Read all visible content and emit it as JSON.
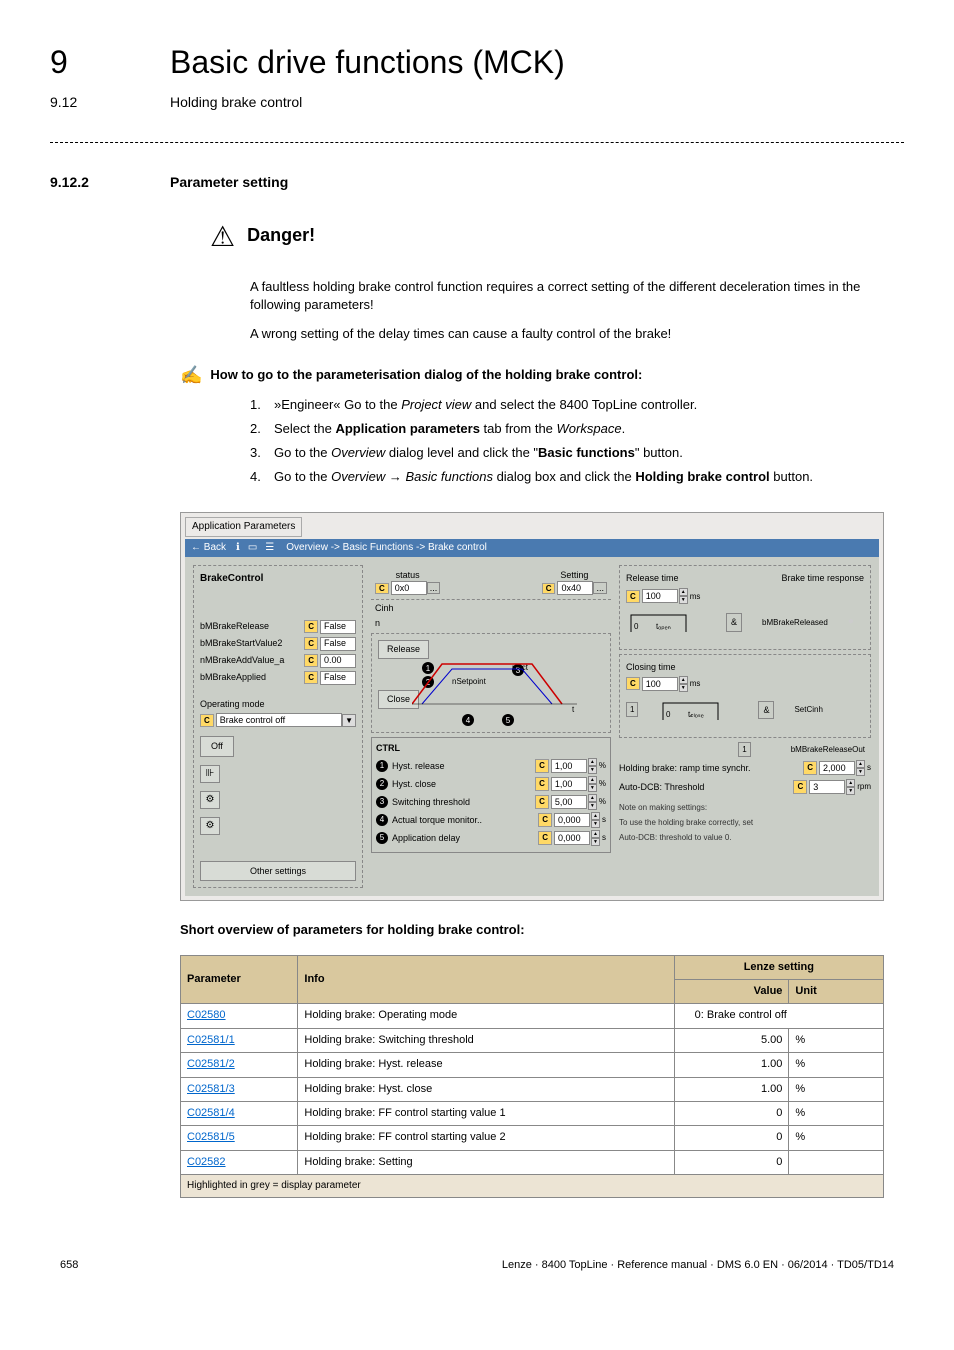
{
  "header": {
    "chapter_num": "9",
    "chapter_title": "Basic drive functions (MCK)",
    "sub_num": "9.12",
    "sub_title": "Holding brake control"
  },
  "section": {
    "num": "9.12.2",
    "title": "Parameter setting"
  },
  "danger": {
    "title": "Danger!",
    "p1": "A faultless holding brake control function requires a correct setting of the different deceleration times in the following parameters!",
    "p2": "A wrong setting of the delay times can cause a faulty control of the brake!"
  },
  "howto": {
    "title": "How to go to the parameterisation dialog of the holding brake control:",
    "steps": [
      {
        "n": "1.",
        "pre": "»Engineer« Go to the ",
        "it1": "Project view",
        "mid": " and select the 8400 TopLine controller."
      },
      {
        "n": "2.",
        "pre": "Select the ",
        "b1": "Application parameters",
        "mid": " tab from the ",
        "it1": "Workspace",
        "post": "."
      },
      {
        "n": "3.",
        "pre": "Go to the ",
        "it1": "Overview",
        "mid": " dialog level and click the \"",
        "b1": "Basic functions",
        "post": "\" button."
      },
      {
        "n": "4.",
        "pre": "Go to the ",
        "it1": "Overview",
        "arrow": " → ",
        "it2": "Basic functions",
        "mid": " dialog box and click the ",
        "b1": "Holding brake control",
        "post": " button."
      }
    ]
  },
  "screenshot": {
    "tab": "Application Parameters",
    "back": "← Back",
    "breadcrumb": "Overview -> Basic Functions -> Brake control",
    "brake_control": "BrakeControl",
    "status_lbl": "status",
    "status_val": "0x0",
    "setting_lbl": "Setting",
    "setting_val": "0x40",
    "cinh": "Cinh",
    "left_fields": [
      {
        "label": "bMBrakeRelease",
        "val": "False"
      },
      {
        "label": "bMBrakeStartValue2",
        "val": "False"
      },
      {
        "label": "nMBrakeAddValue_a",
        "val": "0.00"
      },
      {
        "label": "bMBrakeApplied",
        "val": "False"
      }
    ],
    "op_mode_lbl": "Operating mode",
    "op_mode_val": "Brake control off",
    "off_btn": "Off",
    "release_btn": "Release",
    "close_btn": "Close",
    "ctrl_title": "CTRL",
    "ctrl_items": [
      {
        "n": "1",
        "label": "Hyst. release",
        "val": "1,00",
        "unit": "%"
      },
      {
        "n": "2",
        "label": "Hyst. close",
        "val": "1,00",
        "unit": "%"
      },
      {
        "n": "3",
        "label": "Switching threshold",
        "val": "5,00",
        "unit": "%"
      },
      {
        "n": "4",
        "label": "Actual torque monitor..",
        "val": "0,000",
        "unit": "s"
      },
      {
        "n": "5",
        "label": "Application delay",
        "val": "0,000",
        "unit": "s"
      }
    ],
    "other_btn": "Other settings",
    "release_time_lbl": "Release time",
    "release_time_val": "100",
    "brake_resp_lbl": "Brake time response",
    "bmreleased": "bMBrakeReleased",
    "topen": "topen",
    "closing_lbl": "Closing time",
    "closing_val": "100",
    "tclose": "tclose",
    "setcinh": "SetCinh",
    "bmreleaseout": "bMBrakeReleaseOut",
    "ramp_lbl": "Holding brake: ramp time synchr.",
    "ramp_val": "2,000",
    "ramp_unit": "s",
    "dcb_lbl": "Auto-DCB: Threshold",
    "dcb_val": "3",
    "dcb_unit": "rpm",
    "note1": "Note on making settings:",
    "note2": "To use the holding brake correctly, set",
    "note3": "Auto-DCB: threshold to value 0.",
    "nset": "nSetpoint",
    "nact": "nAct",
    "amp": "&",
    "one": "1"
  },
  "overview_caption": "Short overview of parameters for holding brake control:",
  "table": {
    "h_param": "Parameter",
    "h_info": "Info",
    "h_lenze": "Lenze setting",
    "h_value": "Value",
    "h_unit": "Unit",
    "rows": [
      {
        "p": "C02580",
        "info": "Holding brake: Operating mode",
        "val": "0: Brake control off",
        "unit": "",
        "span": true
      },
      {
        "p": "C02581/1",
        "info": "Holding brake: Switching threshold",
        "val": "5.00",
        "unit": "%"
      },
      {
        "p": "C02581/2",
        "info": "Holding brake: Hyst. release",
        "val": "1.00",
        "unit": "%"
      },
      {
        "p": "C02581/3",
        "info": "Holding brake: Hyst. close",
        "val": "1.00",
        "unit": "%"
      },
      {
        "p": "C02581/4",
        "info": "Holding brake: FF control starting value 1",
        "val": "0",
        "unit": "%"
      },
      {
        "p": "C02581/5",
        "info": "Holding brake: FF control starting value 2",
        "val": "0",
        "unit": "%"
      },
      {
        "p": "C02582",
        "info": "Holding brake: Setting",
        "val": "0",
        "unit": ""
      }
    ],
    "footer": "Highlighted in grey = display parameter"
  },
  "footer": {
    "page": "658",
    "ref": "Lenze · 8400 TopLine · Reference manual · DMS 6.0 EN · 06/2014 · TD05/TD14"
  }
}
